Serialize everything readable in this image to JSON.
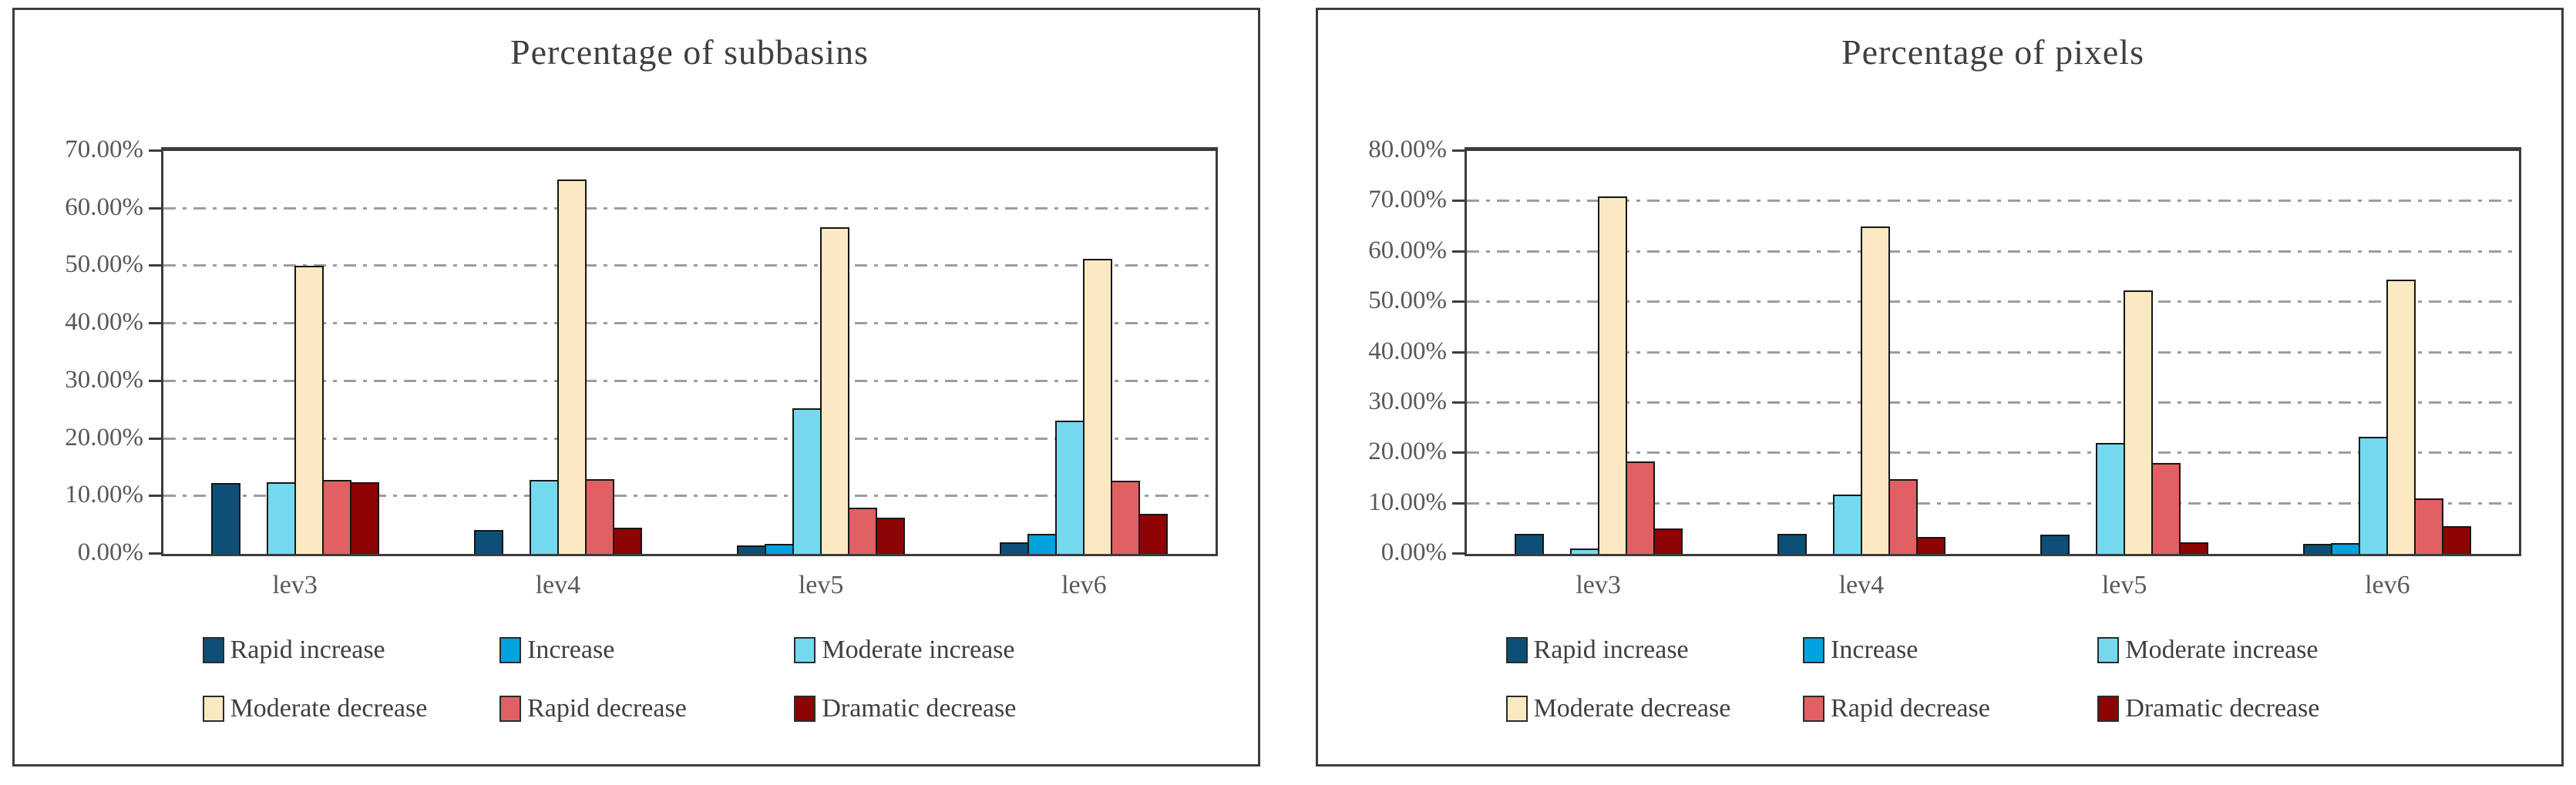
{
  "figure": {
    "background": "#ffffff",
    "panel_border_color": "#3d3d3d",
    "plot_border_color": "#3c3c3c",
    "gridline_color": "#9d9d9d",
    "axis_text_color": "#595959",
    "title_text_color": "#3f3f3f",
    "legend_text_color": "#404040"
  },
  "chart_data": [
    {
      "type": "bar",
      "title": "Percentage of subbasins",
      "categories": [
        "lev3",
        "lev4",
        "lev5",
        "lev6"
      ],
      "series": [
        {
          "name": "Rapid increase",
          "color": "#0e4f77",
          "values": [
            12.3,
            4.2,
            1.5,
            2.0
          ]
        },
        {
          "name": "Increase",
          "color": "#00a3e0",
          "values": [
            0,
            0,
            1.8,
            3.5
          ]
        },
        {
          "name": "Moderate increase",
          "color": "#74d9ee",
          "values": [
            12.5,
            12.8,
            25.3,
            23.2
          ]
        },
        {
          "name": "Moderate decrease",
          "color": "#fbe9c2",
          "values": [
            50.0,
            65.0,
            56.8,
            51.3
          ]
        },
        {
          "name": "Rapid decrease",
          "color": "#e06063",
          "values": [
            12.8,
            13.0,
            8.0,
            12.7
          ]
        },
        {
          "name": "Dramatic decrease",
          "color": "#8e0303",
          "values": [
            12.5,
            4.5,
            6.3,
            7.0
          ]
        }
      ],
      "ylim": [
        0,
        70
      ],
      "ytick_step": 10,
      "ytick_labels": [
        "0.00%",
        "10.00%",
        "20.00%",
        "30.00%",
        "40.00%",
        "50.00%",
        "60.00%",
        "70.00%"
      ],
      "grid": true,
      "gridline_style": "dash-dot",
      "legend_position": "bottom"
    },
    {
      "type": "bar",
      "title": "Percentage of pixels",
      "categories": [
        "lev3",
        "lev4",
        "lev5",
        "lev6"
      ],
      "series": [
        {
          "name": "Rapid increase",
          "color": "#0e4f77",
          "values": [
            4.0,
            4.0,
            3.8,
            2.0
          ]
        },
        {
          "name": "Increase",
          "color": "#00a3e0",
          "values": [
            0,
            0,
            0,
            2.2
          ]
        },
        {
          "name": "Moderate increase",
          "color": "#74d9ee",
          "values": [
            1.0,
            11.8,
            22.0,
            23.2
          ]
        },
        {
          "name": "Moderate decrease",
          "color": "#fbe9c2",
          "values": [
            71.0,
            65.0,
            52.3,
            54.5
          ]
        },
        {
          "name": "Rapid decrease",
          "color": "#e06063",
          "values": [
            18.3,
            14.8,
            18.0,
            11.0
          ]
        },
        {
          "name": "Dramatic decrease",
          "color": "#8e0303",
          "values": [
            5.0,
            3.3,
            2.3,
            5.5
          ]
        }
      ],
      "ylim": [
        0,
        80
      ],
      "ytick_step": 10,
      "ytick_labels": [
        "0.00%",
        "10.00%",
        "20.00%",
        "30.00%",
        "40.00%",
        "50.00%",
        "60.00%",
        "70.00%",
        "80.00%"
      ],
      "grid": true,
      "gridline_style": "dash-dot",
      "legend_position": "bottom"
    }
  ]
}
